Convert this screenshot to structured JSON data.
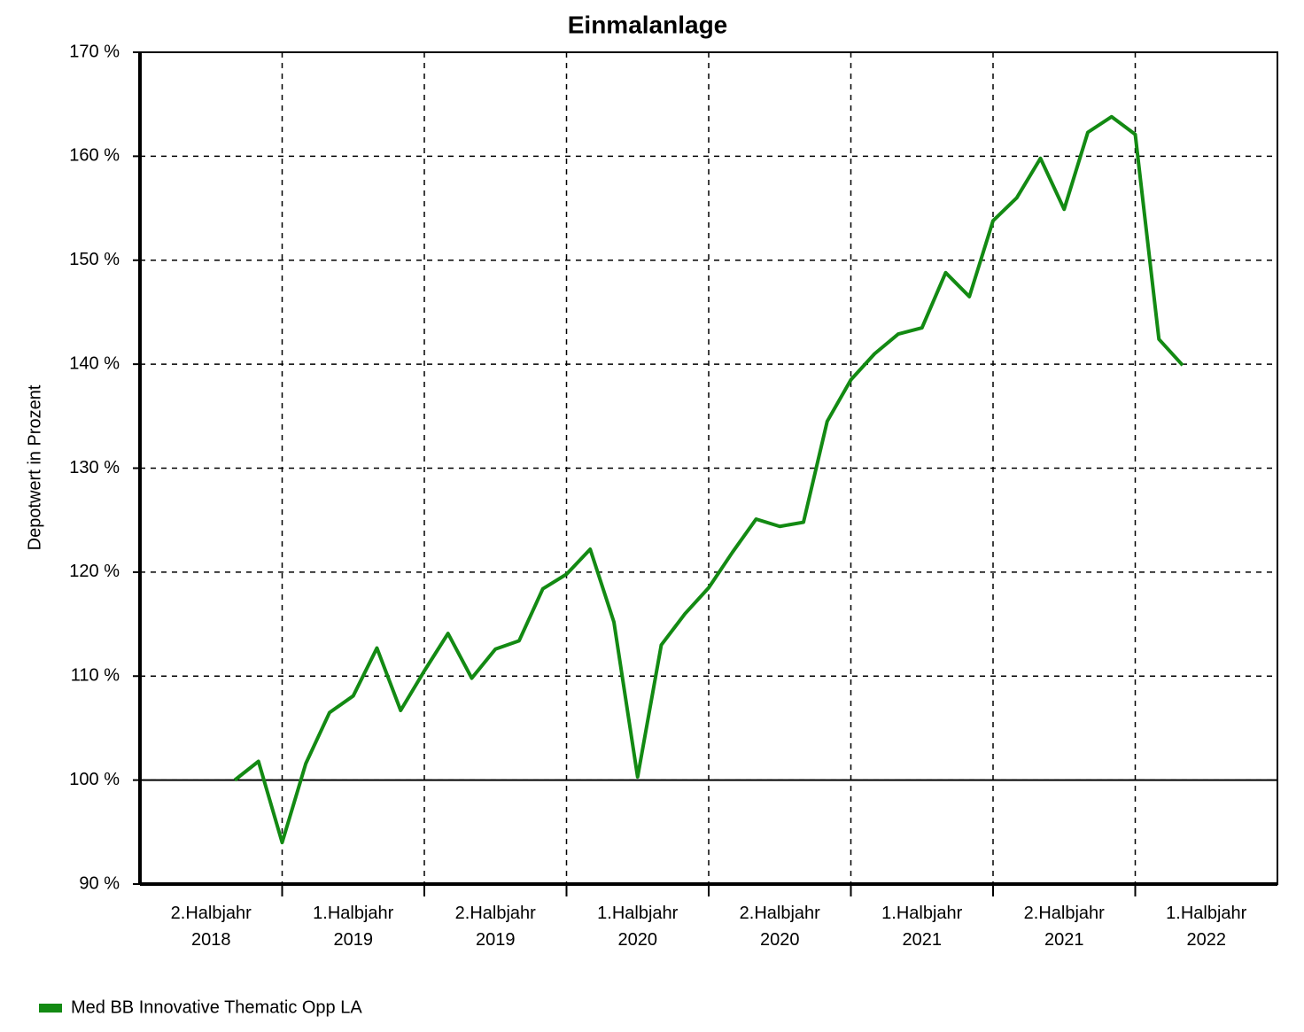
{
  "chart_data": {
    "type": "line",
    "title": "Einmalanlage",
    "y_label": "Depotwert in Prozent",
    "xlim": [
      2018.5,
      2022.5
    ],
    "xgrid": [
      2019,
      2019.5,
      2020,
      2020.5,
      2021,
      2021.5,
      2022
    ],
    "xticks": [
      {
        "value": 2018.75,
        "label": "2.Halbjahr\n2018"
      },
      {
        "value": 2019.25,
        "label": "1.Halbjahr\n2019"
      },
      {
        "value": 2019.75,
        "label": "2.Halbjahr\n2019"
      },
      {
        "value": 2020.25,
        "label": "1.Halbjahr\n2020"
      },
      {
        "value": 2020.75,
        "label": "2.Halbjahr\n2020"
      },
      {
        "value": 2021.25,
        "label": "1.Halbjahr\n2021"
      },
      {
        "value": 2021.75,
        "label": "2.Halbjahr\n2021"
      },
      {
        "value": 2022.25,
        "label": "1.Halbjahr\n2022"
      }
    ],
    "ylim": [
      90,
      170
    ],
    "yticks": [
      {
        "value": 90,
        "label": "90 %"
      },
      {
        "value": 100,
        "label": "100 %"
      },
      {
        "value": 110,
        "label": "110 %"
      },
      {
        "value": 120,
        "label": "120 %"
      },
      {
        "value": 130,
        "label": "130 %"
      },
      {
        "value": 140,
        "label": "140 %"
      },
      {
        "value": 150,
        "label": "150 %"
      },
      {
        "value": 160,
        "label": "160 %"
      },
      {
        "value": 170,
        "label": "170 %"
      }
    ],
    "grid": true,
    "reference_line": 100,
    "legend": "bottom-left",
    "x": [
      2018.8333,
      2018.9167,
      2019.0,
      2019.0833,
      2019.1667,
      2019.25,
      2019.3333,
      2019.4167,
      2019.5,
      2019.5833,
      2019.6667,
      2019.75,
      2019.8333,
      2019.9167,
      2020.0,
      2020.0833,
      2020.1667,
      2020.25,
      2020.3333,
      2020.4167,
      2020.5,
      2020.5833,
      2020.6667,
      2020.75,
      2020.8333,
      2020.9167,
      2021.0,
      2021.0833,
      2021.1667,
      2021.25,
      2021.3333,
      2021.4167,
      2021.5,
      2021.5833,
      2021.6667,
      2021.75,
      2021.8333,
      2021.9167,
      2022.0,
      2022.0833,
      2022.1667
    ],
    "series": [
      {
        "name": "Med BB Innovative Thematic Opp LA",
        "color": "#138a13",
        "values": [
          100.0,
          101.8,
          94.0,
          101.6,
          106.5,
          108.1,
          112.7,
          106.7,
          110.5,
          114.1,
          109.8,
          112.6,
          113.4,
          118.4,
          119.8,
          122.2,
          115.2,
          100.3,
          113.0,
          116.0,
          118.5,
          121.9,
          125.1,
          124.4,
          124.8,
          134.5,
          138.5,
          141.0,
          142.9,
          143.5,
          148.8,
          146.5,
          153.8,
          156.0,
          159.8,
          154.9,
          162.3,
          163.8,
          162.1,
          142.4,
          139.9
        ]
      }
    ]
  }
}
